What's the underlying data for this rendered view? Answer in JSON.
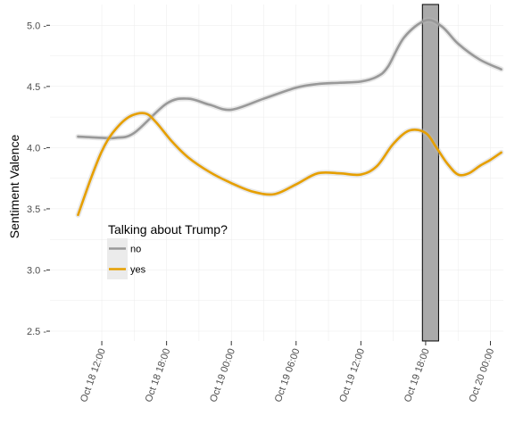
{
  "chart_data": {
    "type": "line",
    "ylabel": "Sentiment Valence",
    "xlabel": "",
    "ylim": [
      2.42,
      5.17
    ],
    "y_ticks": [
      2.5,
      3.0,
      3.5,
      4.0,
      4.5,
      5.0
    ],
    "y_tick_labels": [
      "2.5 -",
      "3.0 -",
      "3.5 -",
      "4.0 -",
      "4.5 -",
      "5.0 -"
    ],
    "x_hours_range": [
      -4.8,
      37.2
    ],
    "x_ticks_hours": [
      0,
      6,
      12,
      18,
      24,
      30,
      36
    ],
    "x_tick_labels": [
      "Oct 18 12:00",
      "Oct 18 18:00",
      "Oct 19 00:00",
      "Oct 19 06:00",
      "Oct 19 12:00",
      "Oct 19 18:00",
      "Oct 20 00:00"
    ],
    "grid": true,
    "highlight_band": {
      "x_start_hours": 29.7,
      "x_end_hours": 31.2,
      "color": "#aaaaaa"
    },
    "legend": {
      "title": "Talking about Trump?",
      "placement": "center-left",
      "entries": [
        "no",
        "yes"
      ]
    },
    "series": [
      {
        "name": "no",
        "color": "#999999",
        "x_hours": [
          -2.2,
          0,
          1.3,
          3,
          6,
          8,
          10,
          12,
          15,
          18,
          20,
          22,
          24,
          25.5,
          26.5,
          28,
          30,
          31.5,
          33,
          35,
          37
        ],
        "y": [
          4.09,
          4.08,
          4.08,
          4.12,
          4.36,
          4.4,
          4.35,
          4.31,
          4.4,
          4.49,
          4.52,
          4.53,
          4.54,
          4.58,
          4.66,
          4.9,
          5.04,
          4.99,
          4.85,
          4.72,
          4.64
        ]
      },
      {
        "name": "yes",
        "color": "#E69F00",
        "x_hours": [
          -2.2,
          -1,
          0,
          1,
          2.5,
          4,
          5,
          6.5,
          8,
          10,
          12,
          14,
          16,
          18,
          20,
          22,
          24,
          25.5,
          27,
          28.5,
          30,
          31,
          32,
          33,
          34,
          35,
          36,
          37
        ],
        "y": [
          3.45,
          3.75,
          3.97,
          4.12,
          4.25,
          4.28,
          4.21,
          4.05,
          3.92,
          3.8,
          3.71,
          3.64,
          3.62,
          3.7,
          3.79,
          3.79,
          3.78,
          3.85,
          4.03,
          4.14,
          4.12,
          4.0,
          3.87,
          3.78,
          3.79,
          3.85,
          3.9,
          3.96
        ]
      }
    ]
  }
}
